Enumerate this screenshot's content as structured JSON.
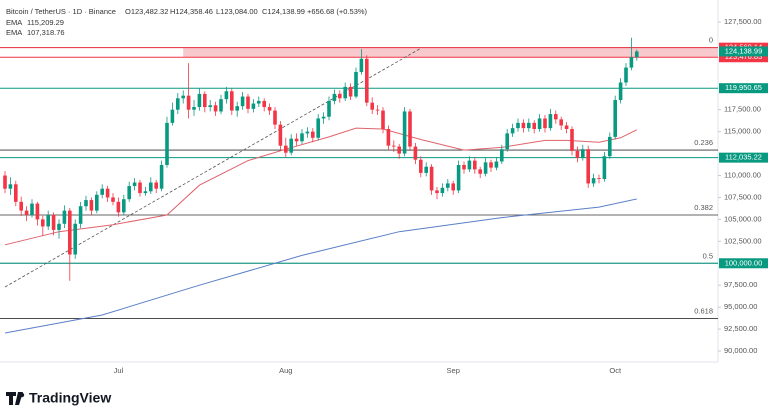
{
  "chart_data": {
    "type": "candlestick",
    "symbol": "Bitcoin / TetherUS · 1D · Binance",
    "ohlc_header": [
      "O123,482.32",
      "H124,358.46",
      "L123,084.00",
      "C124,138.99",
      "+656.68 (+0.53%)"
    ],
    "brand": "TradingView",
    "categories": [
      "Jul",
      "Aug",
      "Sep",
      "Oct"
    ],
    "up_color": "#089981",
    "down_color": "#f23645",
    "ylim": [
      88750,
      130000
    ],
    "grid": false,
    "yticks": [
      {
        "value": 127500,
        "label": "127,500.00"
      },
      {
        "value": 117500,
        "label": "117,500.00"
      },
      {
        "value": 115000,
        "label": "115,000.00"
      },
      {
        "value": 110000,
        "label": "110,000.00"
      },
      {
        "value": 107500,
        "label": "107,500.00"
      },
      {
        "value": 105000,
        "label": "105,000.00"
      },
      {
        "value": 102500,
        "label": "102,500.00"
      },
      {
        "value": 97500,
        "label": "97,500.00"
      },
      {
        "value": 95000,
        "label": "95,000.00"
      },
      {
        "value": 92500,
        "label": "92,500.00"
      },
      {
        "value": 90000,
        "label": "90,000.00"
      }
    ],
    "candles": [
      [
        110000,
        110500,
        108000,
        108500
      ],
      [
        108500,
        109800,
        107800,
        109000
      ],
      [
        109000,
        109400,
        106500,
        107000
      ],
      [
        107000,
        107600,
        105400,
        106000
      ],
      [
        106000,
        106500,
        104800,
        105500
      ],
      [
        105500,
        107300,
        105200,
        106800
      ],
      [
        106800,
        107000,
        104300,
        105000
      ],
      [
        105000,
        105400,
        103100,
        104200
      ],
      [
        104200,
        106000,
        103800,
        105500
      ],
      [
        105500,
        105800,
        103200,
        103800
      ],
      [
        103800,
        105000,
        102800,
        104500
      ],
      [
        104500,
        106600,
        104000,
        106000
      ],
      [
        106000,
        106300,
        98000,
        101000
      ],
      [
        101000,
        105000,
        100500,
        104500
      ],
      [
        104500,
        107000,
        104000,
        106500
      ],
      [
        106500,
        107700,
        106000,
        107200
      ],
      [
        107200,
        107500,
        105500,
        106000
      ],
      [
        106000,
        108200,
        105700,
        107800
      ],
      [
        107800,
        109000,
        107400,
        108500
      ],
      [
        108500,
        108800,
        107000,
        107500
      ],
      [
        107500,
        108000,
        106600,
        107000
      ],
      [
        107000,
        107500,
        105300,
        105800
      ],
      [
        105800,
        107800,
        105500,
        107300
      ],
      [
        107300,
        109300,
        107000,
        108800
      ],
      [
        108800,
        109700,
        108300,
        109200
      ],
      [
        109200,
        109500,
        107600,
        108000
      ],
      [
        108000,
        108700,
        107700,
        108200
      ],
      [
        108200,
        109800,
        107900,
        109200
      ],
      [
        109200,
        109500,
        108000,
        108500
      ],
      [
        108500,
        111700,
        108200,
        111200
      ],
      [
        111200,
        116700,
        110900,
        116000
      ],
      [
        116000,
        118300,
        115700,
        117500
      ],
      [
        117500,
        119400,
        117000,
        118800
      ],
      [
        118800,
        119700,
        118200,
        119100
      ],
      [
        119100,
        122800,
        116500,
        117500
      ],
      [
        117500,
        118600,
        116800,
        117800
      ],
      [
        117800,
        119900,
        117400,
        119300
      ],
      [
        119300,
        119600,
        117200,
        117800
      ],
      [
        117800,
        118600,
        117300,
        118000
      ],
      [
        118000,
        118400,
        116800,
        117300
      ],
      [
        117300,
        119200,
        117000,
        118700
      ],
      [
        118700,
        120100,
        118200,
        119600
      ],
      [
        119600,
        119900,
        116900,
        117400
      ],
      [
        117400,
        118400,
        116700,
        117900
      ],
      [
        117900,
        119500,
        117500,
        119000
      ],
      [
        119000,
        119300,
        117100,
        117600
      ],
      [
        117600,
        118700,
        117200,
        118200
      ],
      [
        118200,
        119000,
        117800,
        118500
      ],
      [
        118500,
        118800,
        117300,
        117800
      ],
      [
        117800,
        118200,
        116900,
        117400
      ],
      [
        117400,
        117800,
        115300,
        115800
      ],
      [
        115800,
        116200,
        112900,
        113400
      ],
      [
        113400,
        114300,
        112100,
        112600
      ],
      [
        112600,
        114700,
        112300,
        114200
      ],
      [
        114200,
        114800,
        113400,
        113900
      ],
      [
        113900,
        115300,
        113600,
        114800
      ],
      [
        114800,
        115500,
        114300,
        115000
      ],
      [
        115000,
        115400,
        113800,
        114300
      ],
      [
        114300,
        117000,
        114000,
        116500
      ],
      [
        116500,
        117200,
        115900,
        116700
      ],
      [
        116700,
        119000,
        116300,
        118500
      ],
      [
        118500,
        119800,
        118100,
        119300
      ],
      [
        119300,
        119700,
        118300,
        118800
      ],
      [
        118800,
        120600,
        118500,
        120100
      ],
      [
        120100,
        120500,
        118600,
        119000
      ],
      [
        119000,
        122300,
        118800,
        121800
      ],
      [
        121800,
        124400,
        121500,
        123300
      ],
      [
        123300,
        123700,
        117900,
        118300
      ],
      [
        118300,
        118900,
        117000,
        117500
      ],
      [
        117500,
        118000,
        116900,
        117400
      ],
      [
        117400,
        117800,
        114800,
        115300
      ],
      [
        115300,
        115700,
        112900,
        113400
      ],
      [
        113400,
        114000,
        112700,
        113300
      ],
      [
        113300,
        113600,
        111900,
        112500
      ],
      [
        112500,
        117800,
        112200,
        117300
      ],
      [
        117300,
        117600,
        112800,
        113300
      ],
      [
        113300,
        113700,
        111300,
        111800
      ],
      [
        111800,
        112200,
        109800,
        110300
      ],
      [
        110300,
        111500,
        109900,
        111000
      ],
      [
        111000,
        111300,
        107800,
        108300
      ],
      [
        108300,
        108700,
        107300,
        108000
      ],
      [
        108000,
        109100,
        107600,
        108600
      ],
      [
        108600,
        109600,
        108200,
        109100
      ],
      [
        109100,
        109400,
        107800,
        108300
      ],
      [
        108300,
        111700,
        108000,
        111200
      ],
      [
        111200,
        111600,
        110200,
        110700
      ],
      [
        110700,
        112200,
        110400,
        111700
      ],
      [
        111700,
        112000,
        110200,
        110700
      ],
      [
        110700,
        111000,
        109700,
        110200
      ],
      [
        110200,
        112000,
        109900,
        111500
      ],
      [
        111500,
        111800,
        110400,
        110900
      ],
      [
        110900,
        112100,
        110600,
        111600
      ],
      [
        111600,
        113500,
        111300,
        113000
      ],
      [
        113000,
        115300,
        112700,
        114800
      ],
      [
        114800,
        115900,
        114400,
        115400
      ],
      [
        115400,
        116500,
        115000,
        116000
      ],
      [
        116000,
        116400,
        114900,
        115400
      ],
      [
        115400,
        116500,
        115000,
        116000
      ],
      [
        116000,
        116300,
        114800,
        115300
      ],
      [
        115300,
        117000,
        115000,
        116500
      ],
      [
        116500,
        116900,
        114900,
        115400
      ],
      [
        115400,
        117600,
        115100,
        117000
      ],
      [
        117000,
        117400,
        115900,
        116400
      ],
      [
        116400,
        116700,
        115200,
        115700
      ],
      [
        115700,
        116100,
        114800,
        115300
      ],
      [
        115300,
        115600,
        112300,
        112800
      ],
      [
        112800,
        113300,
        111500,
        112000
      ],
      [
        112000,
        113500,
        111700,
        113000
      ],
      [
        113000,
        113400,
        108600,
        109100
      ],
      [
        109100,
        110200,
        108700,
        109700
      ],
      [
        109700,
        110100,
        109100,
        109600
      ],
      [
        109600,
        112700,
        109300,
        112200
      ],
      [
        112200,
        114900,
        111900,
        114400
      ],
      [
        114400,
        119100,
        114100,
        118600
      ],
      [
        118600,
        121100,
        118200,
        120600
      ],
      [
        120600,
        122800,
        120200,
        122300
      ],
      [
        122300,
        125700,
        122000,
        123482.32
      ],
      [
        123482.32,
        124358.46,
        123084.0,
        124138.99
      ]
    ],
    "series": [
      {
        "name": "EMA",
        "value_label": "115,209.29",
        "color": "#e0636b",
        "x": [
          0,
          10,
          20,
          30,
          36,
          45,
          52,
          60,
          65,
          70,
          77,
          85,
          92,
          100,
          104,
          110,
          114,
          117
        ],
        "values": [
          102100,
          103600,
          104400,
          105500,
          108900,
          111700,
          113000,
          114400,
          115400,
          115300,
          114100,
          112900,
          113200,
          114000,
          114000,
          113800,
          114300,
          115209.29
        ]
      },
      {
        "name": "EMA",
        "value_label": "107,318.76",
        "color": "#5b7fc7",
        "x": [
          0,
          18,
          36,
          55,
          73,
          92,
          110,
          117
        ],
        "values": [
          92050,
          94100,
          97500,
          100900,
          103600,
          105200,
          106400,
          107318.76
        ]
      }
    ],
    "trendline": {
      "x": [
        0,
        77
      ],
      "values": [
        97300,
        124500
      ],
      "color": "#555555"
    },
    "levels": [
      {
        "value": 124569.14,
        "label": "124,569.14",
        "color": "#f23645"
      },
      {
        "value": 123476.83,
        "label": "123,476.83",
        "color": "#f23645"
      },
      {
        "value": 119950.65,
        "label": "119,950.65",
        "color": "#089981"
      },
      {
        "value": 112035.22,
        "label": "112,035.22",
        "color": "#089981"
      },
      {
        "value": 100000,
        "label": "100,000.00",
        "color": "#089981"
      }
    ],
    "zone_color": "#f7c9cd",
    "last_price": {
      "value": 124138.99,
      "label": "124,138.99",
      "color": "#089981"
    },
    "fib_levels": [
      {
        "ratio": 0,
        "price": 124569.14
      },
      {
        "ratio": 0.236,
        "price": 112900
      },
      {
        "ratio": 0.382,
        "price": 105500
      },
      {
        "ratio": 0.5,
        "price": 100000
      },
      {
        "ratio": 0.618,
        "price": 93700
      }
    ],
    "fib_color": "#333333"
  }
}
